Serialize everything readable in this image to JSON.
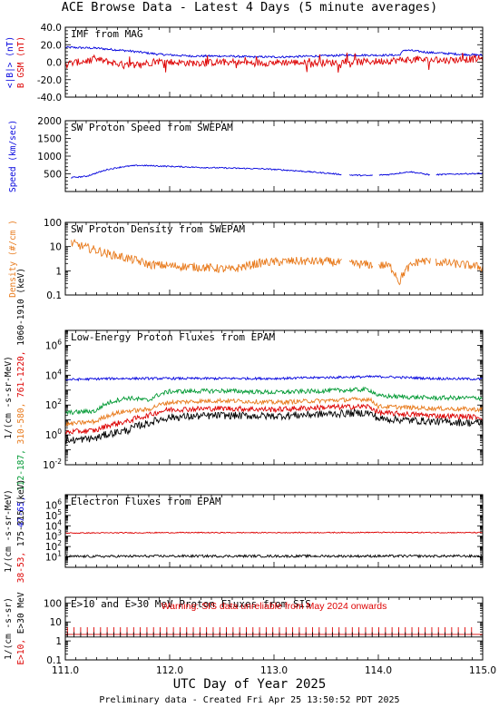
{
  "header": {
    "title": "ACE Browse Data - Latest 4 Days (5 minute averages)"
  },
  "footer": {
    "text": "Preliminary data - Created Fri Apr 25 13:50:52 PDT 2025"
  },
  "colors": {
    "blue": "#0000dd",
    "red": "#dd0000",
    "orange": "#e87a1c",
    "green": "#009933",
    "black": "#000000"
  },
  "chart_data": [
    {
      "type": "line",
      "title": "IMF from MAG",
      "xlim": [
        111.0,
        115.0
      ],
      "ylim": [
        -40,
        40
      ],
      "yticks": [
        "40.0",
        "20.0",
        "0.0",
        "-20.0",
        "-40.0"
      ],
      "ylabel": [
        {
          "text": "<|B|> (nT)",
          "color": "#0000dd"
        },
        {
          "text": "B  GSM (nT)",
          "color": "#dd0000"
        }
      ],
      "series": [
        {
          "color": "#0000dd",
          "x": [
            111.0,
            111.3,
            111.6,
            111.9,
            112.2,
            112.5,
            112.8,
            113.1,
            113.4,
            113.7,
            114.0,
            114.2,
            114.25,
            114.5,
            114.8,
            115.0
          ],
          "y": [
            17,
            16,
            13,
            9,
            7,
            7,
            6,
            6,
            7,
            8,
            8,
            8,
            14,
            11,
            9,
            8
          ]
        },
        {
          "color": "#dd0000",
          "x": [
            111.0,
            111.3,
            111.6,
            111.9,
            112.2,
            112.5,
            112.8,
            113.1,
            113.4,
            113.7,
            114.0,
            114.3,
            114.6,
            115.0
          ],
          "y": [
            -2,
            3,
            -4,
            1,
            -1,
            0,
            -1,
            0,
            -1,
            0,
            1,
            3,
            2,
            4
          ]
        }
      ]
    },
    {
      "type": "line",
      "title": "SW Proton Speed from SWEPAM",
      "xlim": [
        111.0,
        115.0
      ],
      "ylim": [
        0,
        2000
      ],
      "yticks": [
        "2000",
        "1500",
        "1000",
        "500"
      ],
      "ylabel": [
        {
          "text": "Speed (km/sec)",
          "color": "#0000dd"
        }
      ],
      "series": [
        {
          "color": "#0000dd",
          "x": [
            111.0,
            111.2,
            111.4,
            111.55,
            111.7,
            112.0,
            112.3,
            112.6,
            112.9,
            113.2,
            113.5,
            113.7,
            113.9,
            114.1,
            114.3,
            114.5,
            114.8,
            115.0
          ],
          "y": [
            380,
            430,
            620,
            700,
            740,
            710,
            680,
            660,
            640,
            590,
            520,
            470,
            450,
            480,
            560,
            470,
            500,
            510
          ]
        }
      ]
    },
    {
      "type": "line",
      "title": "SW Proton Density from SWEPAM",
      "xlim": [
        111.0,
        115.0
      ],
      "yscale": "log",
      "ylim": [
        0.1,
        100
      ],
      "yticks": [
        "100",
        "10",
        "1",
        "0.1"
      ],
      "ylabel": [
        {
          "text": "Density (#/cm )",
          "color": "#e87a1c"
        }
      ],
      "series": [
        {
          "color": "#e87a1c",
          "x": [
            111.05,
            111.2,
            111.4,
            111.6,
            111.8,
            112.0,
            112.3,
            112.6,
            112.9,
            113.2,
            113.5,
            113.7,
            113.9,
            114.1,
            114.2,
            114.4,
            114.7,
            115.0
          ],
          "y": [
            14,
            9,
            5,
            3.2,
            1.8,
            1.6,
            1.4,
            1.1,
            2.2,
            2.5,
            2.4,
            2.0,
            1.8,
            1.6,
            0.3,
            2.6,
            2.0,
            1.4
          ]
        }
      ]
    },
    {
      "type": "line",
      "title": "Low-Energy Proton Fluxes from EPAM",
      "xlim": [
        111.0,
        115.0
      ],
      "yscale": "log",
      "ylim": [
        0.01,
        10000000
      ],
      "yticks": [
        "10^6",
        "10^4",
        "10^2",
        "10^0",
        "10^-2"
      ],
      "ylabel": [
        {
          "text": "1/(cm -s-sr-MeV)",
          "color": "#000000"
        },
        {
          "text": "47-65,",
          "color": "#0000dd"
        },
        {
          "text": "112-187,",
          "color": "#009933"
        },
        {
          "text": "310-580,",
          "color": "#e87a1c"
        },
        {
          "text": "761-1220,",
          "color": "#dd0000"
        },
        {
          "text": "1060-1910 (keV)",
          "color": "#000000"
        }
      ],
      "series": [
        {
          "name": "47-65",
          "color": "#0000dd",
          "x": [
            111.0,
            111.5,
            112.0,
            112.5,
            113.0,
            113.5,
            114.0,
            114.5,
            115.0
          ],
          "y": [
            5000,
            6000,
            6000,
            6000,
            6000,
            7000,
            8000,
            6000,
            5500
          ]
        },
        {
          "name": "112-187",
          "color": "#009933",
          "x": [
            111.0,
            111.3,
            111.6,
            111.8,
            112.0,
            112.5,
            113.0,
            113.5,
            113.9,
            114.0,
            114.5,
            115.0
          ],
          "y": [
            30,
            40,
            300,
            200,
            800,
            900,
            700,
            900,
            1100,
            400,
            300,
            300
          ]
        },
        {
          "name": "310-580",
          "color": "#e87a1c",
          "x": [
            111.0,
            111.3,
            111.6,
            111.8,
            112.0,
            112.5,
            113.0,
            113.5,
            113.9,
            114.0,
            114.5,
            115.0
          ],
          "y": [
            5,
            8,
            40,
            50,
            150,
            200,
            150,
            200,
            250,
            80,
            60,
            50
          ]
        },
        {
          "name": "761-1220",
          "color": "#dd0000",
          "x": [
            111.0,
            111.3,
            111.6,
            111.8,
            112.0,
            112.5,
            113.0,
            113.5,
            113.9,
            114.0,
            114.5,
            115.0
          ],
          "y": [
            1.5,
            2,
            8,
            20,
            50,
            60,
            50,
            70,
            80,
            30,
            20,
            15
          ]
        },
        {
          "name": "1060-1910",
          "color": "#000000",
          "x": [
            111.0,
            111.3,
            111.6,
            111.8,
            112.0,
            112.5,
            113.0,
            113.5,
            113.9,
            114.0,
            114.5,
            115.0
          ],
          "y": [
            0.4,
            0.6,
            2,
            6,
            15,
            20,
            18,
            25,
            30,
            12,
            8,
            6
          ]
        }
      ]
    },
    {
      "type": "line",
      "title": "Electron Fluxes from EPAM",
      "xlim": [
        111.0,
        115.0
      ],
      "yscale": "log",
      "ylim": [
        1,
        10000000
      ],
      "yticks": [
        "10^6",
        "10^5",
        "10^4",
        "10^3",
        "10^2",
        "10^1"
      ],
      "ylabel": [
        {
          "text": "1/(cm -s-sr-MeV)",
          "color": "#000000"
        },
        {
          "text": "38-53,",
          "color": "#dd0000"
        },
        {
          "text": "175-315 (keV)",
          "color": "#000000"
        }
      ],
      "series": [
        {
          "name": "38-53",
          "color": "#dd0000",
          "x": [
            111.0,
            112.0,
            113.0,
            114.0,
            115.0
          ],
          "y": [
            2000,
            2200,
            2200,
            2300,
            2200
          ]
        },
        {
          "name": "175-315",
          "color": "#000000",
          "x": [
            111.0,
            112.0,
            113.0,
            114.0,
            115.0
          ],
          "y": [
            11,
            12,
            12,
            12,
            12
          ]
        }
      ]
    },
    {
      "type": "line",
      "title": "E>10 and E>30 MeV Proton Fluxes from SIS",
      "xlim": [
        111.0,
        115.0
      ],
      "yscale": "log",
      "ylim": [
        0.1,
        200
      ],
      "yticks": [
        "100",
        "10",
        "1",
        "0.1"
      ],
      "ylabel": [
        {
          "text": "1/(cm -s-sr)",
          "color": "#000000"
        },
        {
          "text": "E>10,",
          "color": "#dd0000"
        },
        {
          "text": "E>30 MeV",
          "color": "#000000"
        }
      ],
      "annotation": "Warning: SIS data unreliable from May 2024 onwards",
      "series": [
        {
          "name": "E>10",
          "color": "#dd0000",
          "x": [
            111.0,
            115.0
          ],
          "y": [
            2.2,
            2.2
          ]
        },
        {
          "name": "E>30",
          "color": "#000000",
          "x": [
            111.0,
            115.0
          ],
          "y": [
            1.6,
            1.6
          ]
        }
      ]
    }
  ],
  "xaxis": {
    "label": "UTC Day of Year 2025",
    "ticks": [
      "111.0",
      "112.0",
      "113.0",
      "114.0",
      "115.0"
    ]
  }
}
